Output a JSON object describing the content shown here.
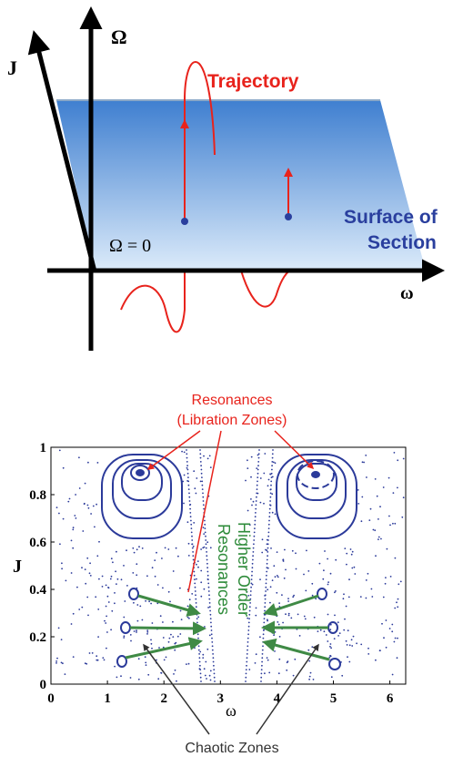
{
  "diagram": {
    "axis_omega_upper": "Ω",
    "axis_j": "J",
    "axis_omega_lower": "ω",
    "trajectory_label": "Trajectory",
    "surface_label_line1": "Surface of",
    "surface_label_line2": "Section",
    "omega_zero_label": "Ω = 0",
    "colors": {
      "trajectory": "#e8231c",
      "surface_top": "#3f7fd0",
      "surface_bottom": "#d8e8f8",
      "surface_label": "#2a3f9e",
      "axis": "#000000"
    }
  },
  "plot": {
    "ylabel": "J",
    "xlabel": "ω",
    "x_ticks": [
      "0",
      "1",
      "2",
      "3",
      "4",
      "5",
      "6"
    ],
    "y_ticks": [
      "0",
      "0.2",
      "0.4",
      "0.6",
      "0.8",
      "1"
    ],
    "xlim": [
      0,
      6.28
    ],
    "ylim": [
      0,
      1
    ],
    "resonance_label_line1": "Resonances",
    "resonance_label_line2": "(Libration Zones)",
    "higher_order_line1": "Higher Order",
    "higher_order_line2": "Resonances",
    "chaotic_label": "Chaotic Zones",
    "colors": {
      "points": "#2b3a9a",
      "resonance_text": "#e8231c",
      "higher_order_text": "#2e8b3a",
      "chaotic_text": "#333333",
      "resonance_arrow": "#e8231c",
      "higher_order_arrow": "#3f8a45",
      "chaotic_arrow": "#333333"
    }
  }
}
